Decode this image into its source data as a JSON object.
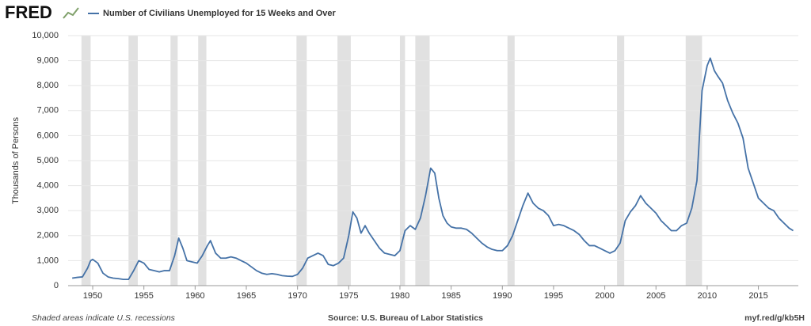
{
  "chart_data": {
    "type": "line",
    "logo": "FRED",
    "title": "Number of Civilians Unemployed for 15 Weeks and Over",
    "y_label": "Thousands of Persons",
    "footer_left": "Shaded areas indicate U.S. recessions",
    "footer_center": "Source: U.S. Bureau of Labor Statistics",
    "footer_right": "myf.red/g/kb5H",
    "xlim": [
      1947.6,
      2018.9
    ],
    "xticks": [
      1950,
      1955,
      1960,
      1965,
      1970,
      1975,
      1980,
      1985,
      1990,
      1995,
      2000,
      2005,
      2010,
      2015
    ],
    "ylim": [
      0,
      10000
    ],
    "yticks": [
      0,
      {
        "value": 1000,
        "label": "1,000"
      },
      {
        "value": 2000,
        "label": "2,000"
      },
      {
        "value": 3000,
        "label": "3,000"
      },
      {
        "value": 4000,
        "label": "4,000"
      },
      {
        "value": 5000,
        "label": "5,000"
      },
      {
        "value": 6000,
        "label": "6,000"
      },
      {
        "value": 7000,
        "label": "7,000"
      },
      {
        "value": 8000,
        "label": "8,000"
      },
      {
        "value": 9000,
        "label": "9,000"
      },
      {
        "value": 10000,
        "label": "10,000"
      }
    ],
    "grid": true,
    "recession_color": "#e1e1e1",
    "recessions": [
      [
        1948.9,
        1949.8
      ],
      [
        1953.5,
        1954.4
      ],
      [
        1957.6,
        1958.3
      ],
      [
        1960.3,
        1961.1
      ],
      [
        1969.9,
        1970.9
      ],
      [
        1973.9,
        1975.2
      ],
      [
        1980.0,
        1980.5
      ],
      [
        1981.5,
        1982.9
      ],
      [
        1990.5,
        1991.2
      ],
      [
        2001.2,
        2001.9
      ],
      [
        2007.9,
        2009.5
      ]
    ],
    "series": [
      {
        "name": "Number of Civilians Unemployed for 15 Weeks and Over",
        "color": "#4572a7",
        "x": [
          1948.0,
          1948.5,
          1949.0,
          1949.5,
          1949.8,
          1950.0,
          1950.5,
          1951.0,
          1951.5,
          1952.0,
          1952.5,
          1953.0,
          1953.5,
          1954.0,
          1954.5,
          1955.0,
          1955.5,
          1956.0,
          1956.5,
          1957.0,
          1957.5,
          1958.0,
          1958.4,
          1958.8,
          1959.2,
          1959.7,
          1960.2,
          1960.7,
          1961.2,
          1961.5,
          1962.0,
          1962.5,
          1963.0,
          1963.5,
          1964.0,
          1964.5,
          1965.0,
          1965.5,
          1966.0,
          1966.5,
          1967.0,
          1967.5,
          1968.0,
          1968.5,
          1969.0,
          1969.5,
          1970.0,
          1970.5,
          1971.0,
          1971.5,
          1972.0,
          1972.5,
          1973.0,
          1973.5,
          1974.0,
          1974.5,
          1975.0,
          1975.4,
          1975.8,
          1976.2,
          1976.6,
          1977.0,
          1977.5,
          1978.0,
          1978.5,
          1979.0,
          1979.5,
          1980.0,
          1980.5,
          1981.0,
          1981.5,
          1982.0,
          1982.5,
          1983.0,
          1983.4,
          1983.8,
          1984.2,
          1984.6,
          1985.0,
          1985.5,
          1986.0,
          1986.5,
          1987.0,
          1987.5,
          1988.0,
          1988.5,
          1989.0,
          1989.5,
          1990.0,
          1990.5,
          1991.0,
          1991.5,
          1992.0,
          1992.5,
          1993.0,
          1993.5,
          1994.0,
          1994.5,
          1995.0,
          1995.5,
          1996.0,
          1996.5,
          1997.0,
          1997.5,
          1998.0,
          1998.5,
          1999.0,
          1999.5,
          2000.0,
          2000.5,
          2001.0,
          2001.5,
          2002.0,
          2002.5,
          2003.0,
          2003.5,
          2004.0,
          2004.5,
          2005.0,
          2005.5,
          2006.0,
          2006.5,
          2007.0,
          2007.5,
          2008.0,
          2008.5,
          2009.0,
          2009.5,
          2010.0,
          2010.3,
          2010.7,
          2011.0,
          2011.5,
          2012.0,
          2012.5,
          2013.0,
          2013.5,
          2014.0,
          2014.5,
          2015.0,
          2015.5,
          2016.0,
          2016.5,
          2017.0,
          2017.5,
          2018.0,
          2018.4
        ],
        "values": [
          300,
          330,
          350,
          700,
          1000,
          1050,
          900,
          500,
          350,
          300,
          280,
          250,
          250,
          600,
          1000,
          900,
          650,
          600,
          550,
          600,
          600,
          1200,
          1900,
          1500,
          1000,
          950,
          900,
          1200,
          1600,
          1800,
          1300,
          1100,
          1100,
          1150,
          1100,
          1000,
          900,
          750,
          600,
          500,
          450,
          480,
          450,
          400,
          380,
          370,
          450,
          700,
          1100,
          1200,
          1300,
          1200,
          850,
          800,
          900,
          1100,
          2000,
          2950,
          2700,
          2100,
          2400,
          2100,
          1800,
          1500,
          1300,
          1250,
          1200,
          1400,
          2200,
          2400,
          2250,
          2700,
          3600,
          4700,
          4500,
          3500,
          2800,
          2500,
          2350,
          2300,
          2300,
          2250,
          2100,
          1900,
          1700,
          1550,
          1450,
          1400,
          1400,
          1600,
          2000,
          2600,
          3200,
          3700,
          3300,
          3100,
          3000,
          2800,
          2400,
          2450,
          2400,
          2300,
          2200,
          2050,
          1800,
          1600,
          1600,
          1500,
          1400,
          1300,
          1400,
          1700,
          2600,
          2950,
          3200,
          3600,
          3300,
          3100,
          2900,
          2600,
          2400,
          2200,
          2200,
          2400,
          2500,
          3100,
          4200,
          7800,
          8800,
          9100,
          8600,
          8400,
          8100,
          7400,
          6900,
          6500,
          5900,
          4700,
          4100,
          3500,
          3300,
          3100,
          3000,
          2700,
          2500,
          2300,
          2200
        ]
      }
    ]
  }
}
